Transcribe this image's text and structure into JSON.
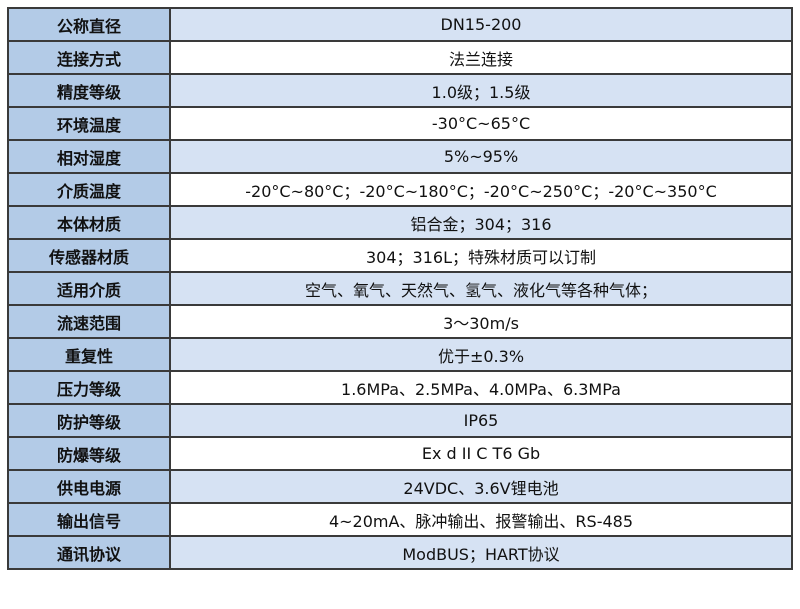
{
  "spec_table": {
    "rows": [
      {
        "label": "公称直径",
        "value": "DN15-200"
      },
      {
        "label": "连接方式",
        "value": "法兰连接"
      },
      {
        "label": "精度等级",
        "value": "1.0级；1.5级"
      },
      {
        "label": "环境温度",
        "value": "-30°C~65°C"
      },
      {
        "label": "相对湿度",
        "value": "5%~95%"
      },
      {
        "label": "介质温度",
        "value": "-20°C~80°C；-20°C~180°C；-20°C~250°C；-20°C~350°C"
      },
      {
        "label": "本体材质",
        "value": "铝合金；304；316"
      },
      {
        "label": "传感器材质",
        "value": "304；316L；特殊材质可以订制"
      },
      {
        "label": "适用介质",
        "value": "空气、氧气、天然气、氢气、液化气等各种气体；"
      },
      {
        "label": "流速范围",
        "value": "3～30m/s"
      },
      {
        "label": "重复性",
        "value": "优于±0.3%"
      },
      {
        "label": "压力等级",
        "value": "1.6MPa、2.5MPa、4.0MPa、6.3MPa"
      },
      {
        "label": "防护等级",
        "value": "IP65"
      },
      {
        "label": "防爆等级",
        "value": "Ex d II C T6 Gb"
      },
      {
        "label": "供电电源",
        "value": "24VDC、3.6V锂电池"
      },
      {
        "label": "输出信号",
        "value": "4~20mA、脉冲输出、报警输出、RS-485"
      },
      {
        "label": "通讯协议",
        "value": "ModBUS；HART协议"
      }
    ]
  },
  "colors": {
    "label_bg": "#b3cbe7",
    "stripe_bg": "#d6e2f3",
    "border": "#3a3a3a"
  }
}
